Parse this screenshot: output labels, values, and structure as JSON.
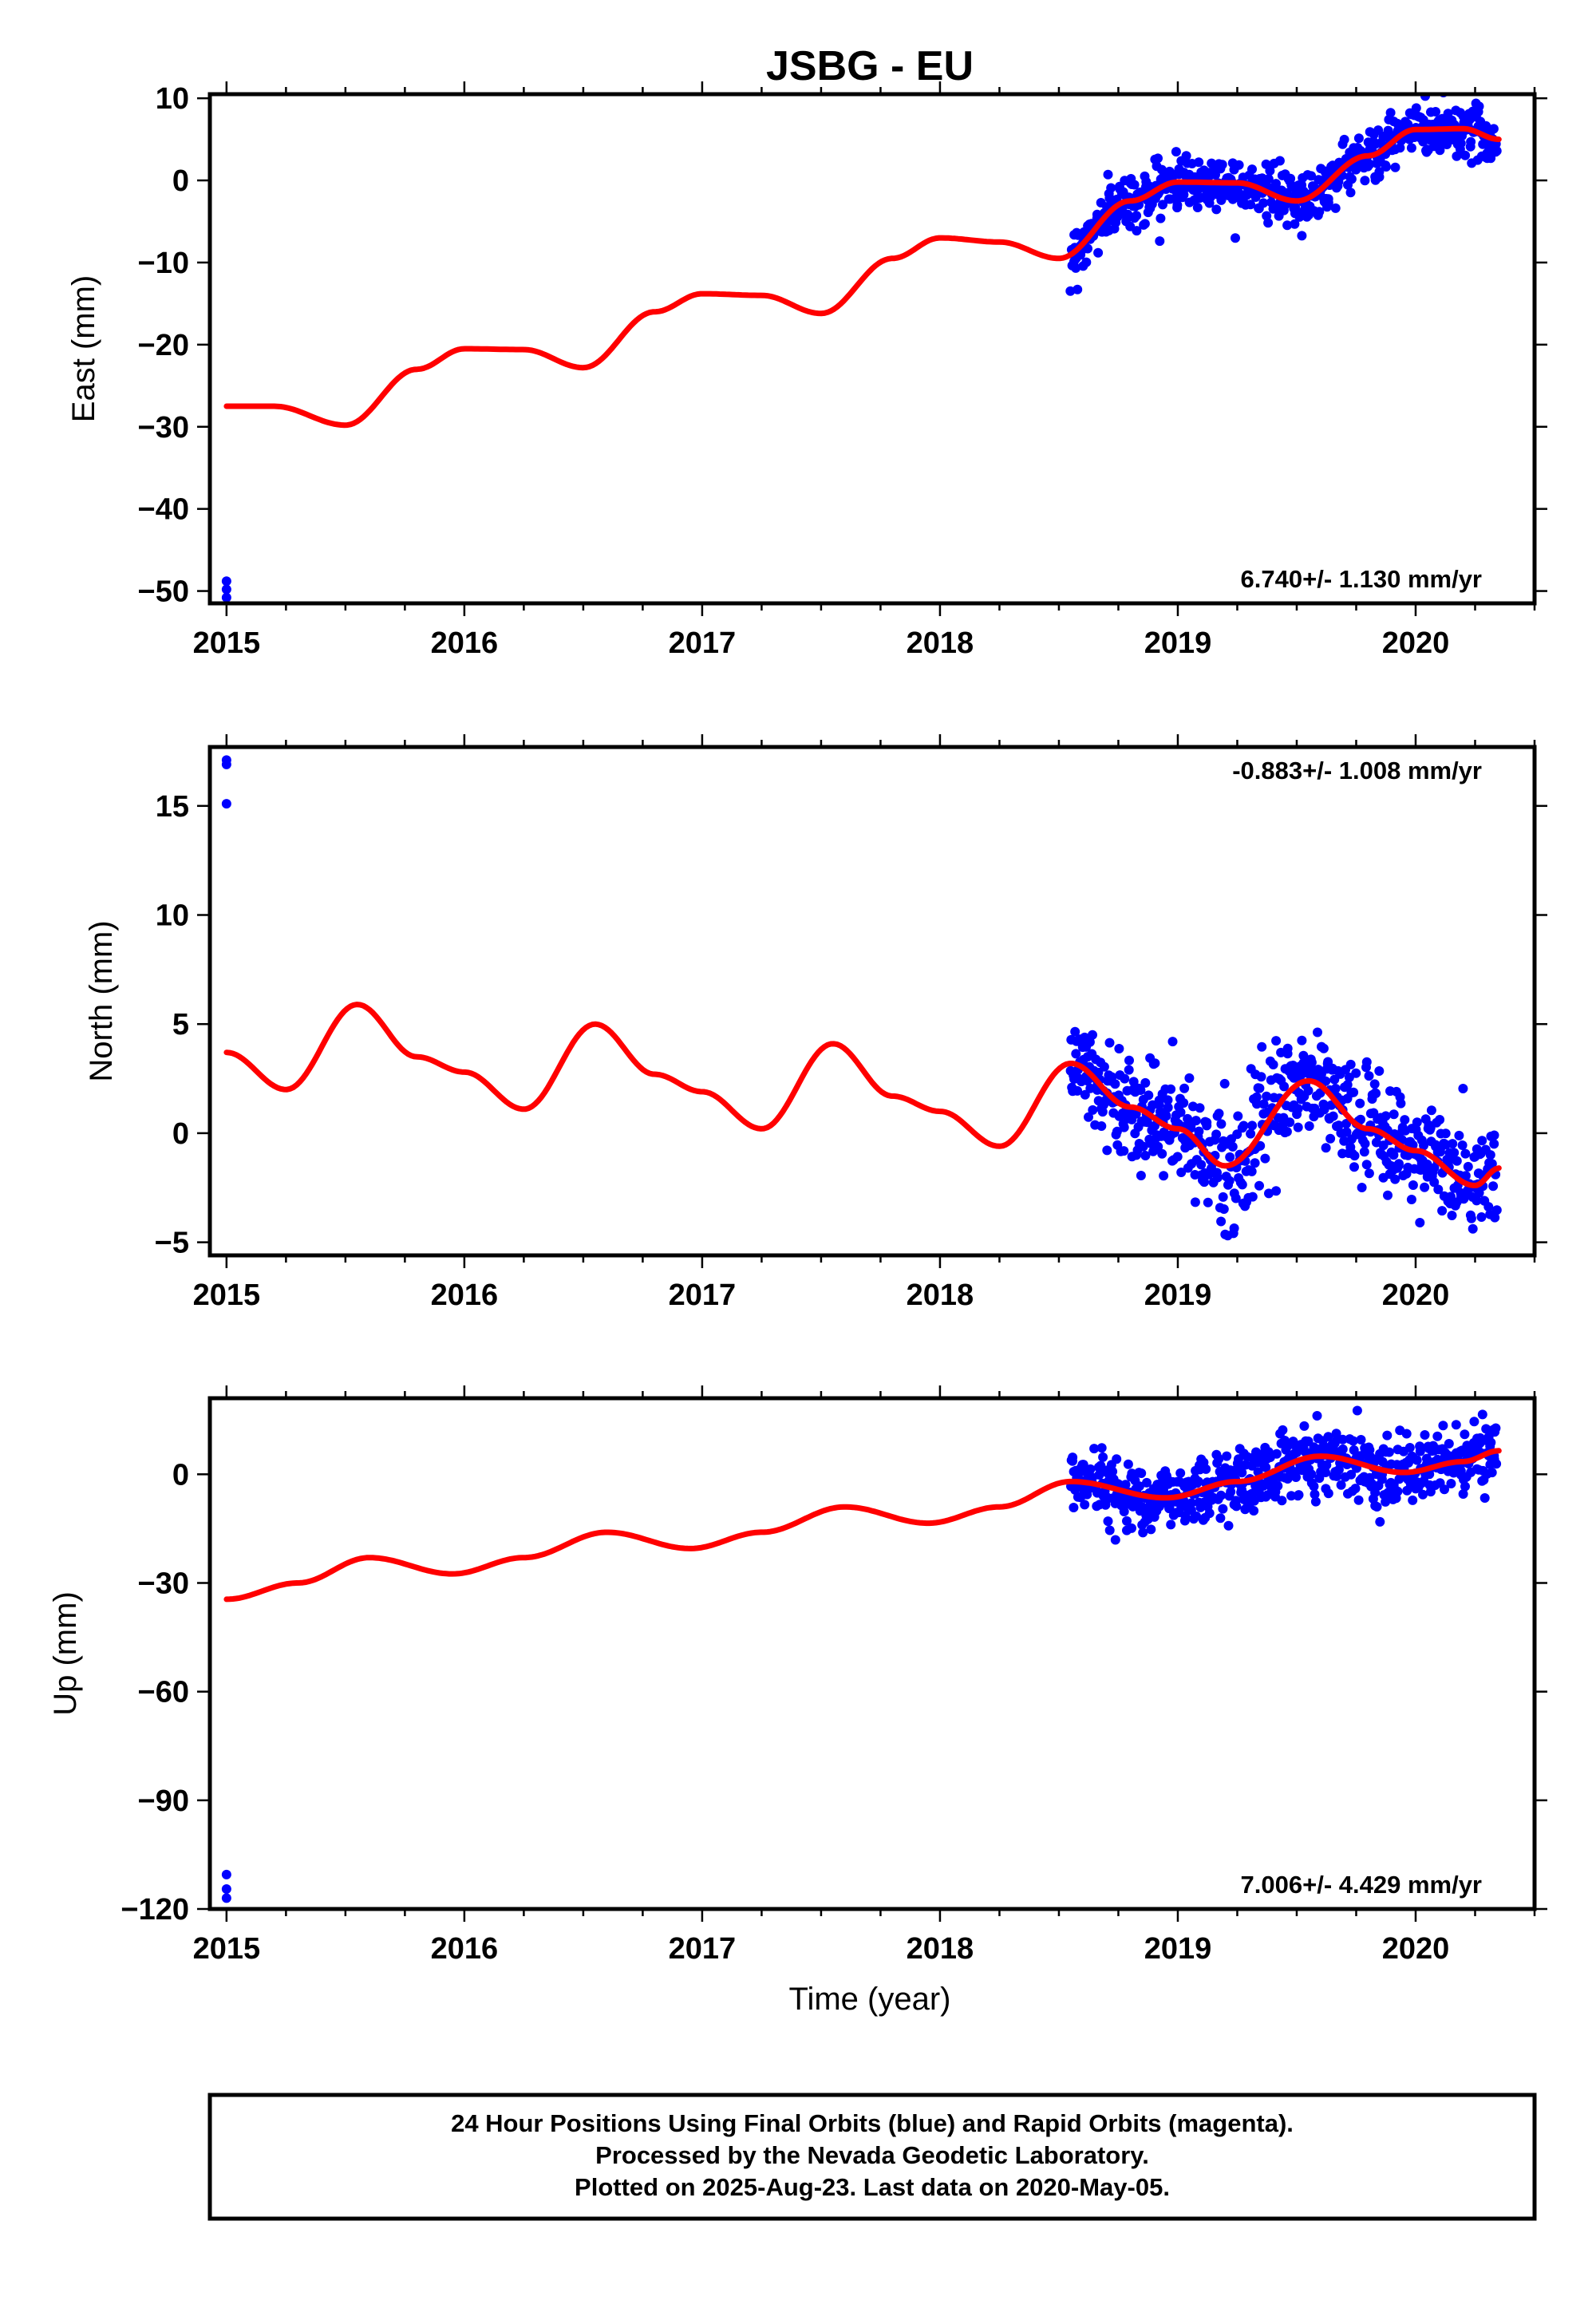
{
  "title": "JSBG - EU",
  "xlabel": "Time (year)",
  "x_ticks": [
    "2015",
    "2016",
    "2017",
    "2018",
    "2019",
    "2020"
  ],
  "footer": {
    "line1": "24 Hour Positions Using Final Orbits (blue) and Rapid Orbits (magenta).",
    "line2": "Processed by the Nevada Geodetic Laboratory.",
    "line3": "Plotted on 2025-Aug-23. Last data on 2020-May-05."
  },
  "colors": {
    "data": "#0000ff",
    "model": "#ff0000"
  },
  "chart_data": [
    {
      "type": "scatter",
      "name": "east",
      "ylabel": "East (mm)",
      "rate_text": "6.740+/- 1.130 mm/yr",
      "rate_position": "bottom-right",
      "xlim": [
        2014.93,
        2020.5
      ],
      "ylim": [
        -51.5,
        10.5
      ],
      "y_ticks": [
        10,
        0,
        -10,
        -20,
        -30,
        -40,
        -50
      ],
      "y_tick_labels": [
        "10",
        "0",
        "−10",
        "−20",
        "−30",
        "−40",
        "−50"
      ],
      "model": {
        "x": [
          2015.0,
          2015.2,
          2015.5,
          2015.8,
          2016.0,
          2016.25,
          2016.5,
          2016.8,
          2017.0,
          2017.25,
          2017.5,
          2017.8,
          2018.0,
          2018.25,
          2018.5,
          2018.8,
          2019.0,
          2019.25,
          2019.5,
          2019.8,
          2020.0,
          2020.2,
          2020.35
        ],
        "y": [
          -27.5,
          -27.5,
          -29.8,
          -23.0,
          -20.5,
          -20.6,
          -22.8,
          -16.0,
          -13.8,
          -14.0,
          -16.2,
          -9.5,
          -7.0,
          -7.5,
          -9.5,
          -2.5,
          -0.2,
          -0.3,
          -2.5,
          3.0,
          6.2,
          6.3,
          5.0
        ]
      },
      "outliers": {
        "x": [
          2015.0,
          2015.0,
          2015.0
        ],
        "y": [
          -48.8,
          -49.8,
          -50.8
        ]
      },
      "data_window": [
        2018.55,
        2020.34
      ],
      "scatter_sigma": 1.6
    },
    {
      "type": "scatter",
      "name": "north",
      "ylabel": "North (mm)",
      "rate_text": "-0.883+/- 1.008 mm/yr",
      "rate_position": "top-right",
      "xlim": [
        2014.93,
        2020.5
      ],
      "ylim": [
        -5.6,
        17.7
      ],
      "y_ticks": [
        15,
        10,
        5,
        0,
        -5
      ],
      "y_tick_labels": [
        "15",
        "10",
        "5",
        "0",
        "−5"
      ],
      "model": {
        "x": [
          2015.0,
          2015.25,
          2015.55,
          2015.8,
          2016.0,
          2016.25,
          2016.55,
          2016.8,
          2017.0,
          2017.25,
          2017.55,
          2017.8,
          2018.0,
          2018.25,
          2018.55,
          2018.8,
          2019.0,
          2019.2,
          2019.55,
          2019.8,
          2020.0,
          2020.25,
          2020.35
        ],
        "y": [
          3.7,
          2.0,
          5.9,
          3.5,
          2.8,
          1.1,
          5.0,
          2.7,
          1.9,
          0.2,
          4.1,
          1.7,
          1.0,
          -0.6,
          3.2,
          1.2,
          0.2,
          -1.5,
          2.4,
          0.2,
          -0.8,
          -2.4,
          -1.6
        ]
      },
      "outliers": {
        "x": [
          2015.0,
          2015.0,
          2015.0
        ],
        "y": [
          17.1,
          16.9,
          15.1
        ]
      },
      "data_window": [
        2018.55,
        2020.34
      ],
      "scatter_sigma": 1.25
    },
    {
      "type": "scatter",
      "name": "up",
      "ylabel": "Up (mm)",
      "rate_text": "7.006+/- 4.429 mm/yr",
      "rate_position": "bottom-right",
      "xlim": [
        2014.93,
        2020.5
      ],
      "ylim": [
        -120,
        21
      ],
      "y_ticks": [
        0,
        -30,
        -60,
        -90,
        -120
      ],
      "y_tick_labels": [
        "0",
        "−30",
        "−60",
        "−90",
        "−120"
      ],
      "model": {
        "x": [
          2015.0,
          2015.3,
          2015.6,
          2015.95,
          2016.25,
          2016.6,
          2016.95,
          2017.25,
          2017.6,
          2017.95,
          2018.25,
          2018.55,
          2018.95,
          2019.25,
          2019.6,
          2019.95,
          2020.2,
          2020.35
        ],
        "y": [
          -34.5,
          -30.0,
          -23.0,
          -27.5,
          -23.0,
          -16.0,
          -20.5,
          -16.0,
          -9.0,
          -13.5,
          -9.0,
          -2.0,
          -6.5,
          -2.0,
          5.0,
          0.5,
          3.5,
          6.5
        ]
      },
      "outliers": {
        "x": [
          2015.0,
          2015.0,
          2015.0
        ],
        "y": [
          -110.5,
          -114.5,
          -117.0
        ]
      },
      "data_window": [
        2018.55,
        2020.34
      ],
      "scatter_sigma": 4.5
    }
  ]
}
